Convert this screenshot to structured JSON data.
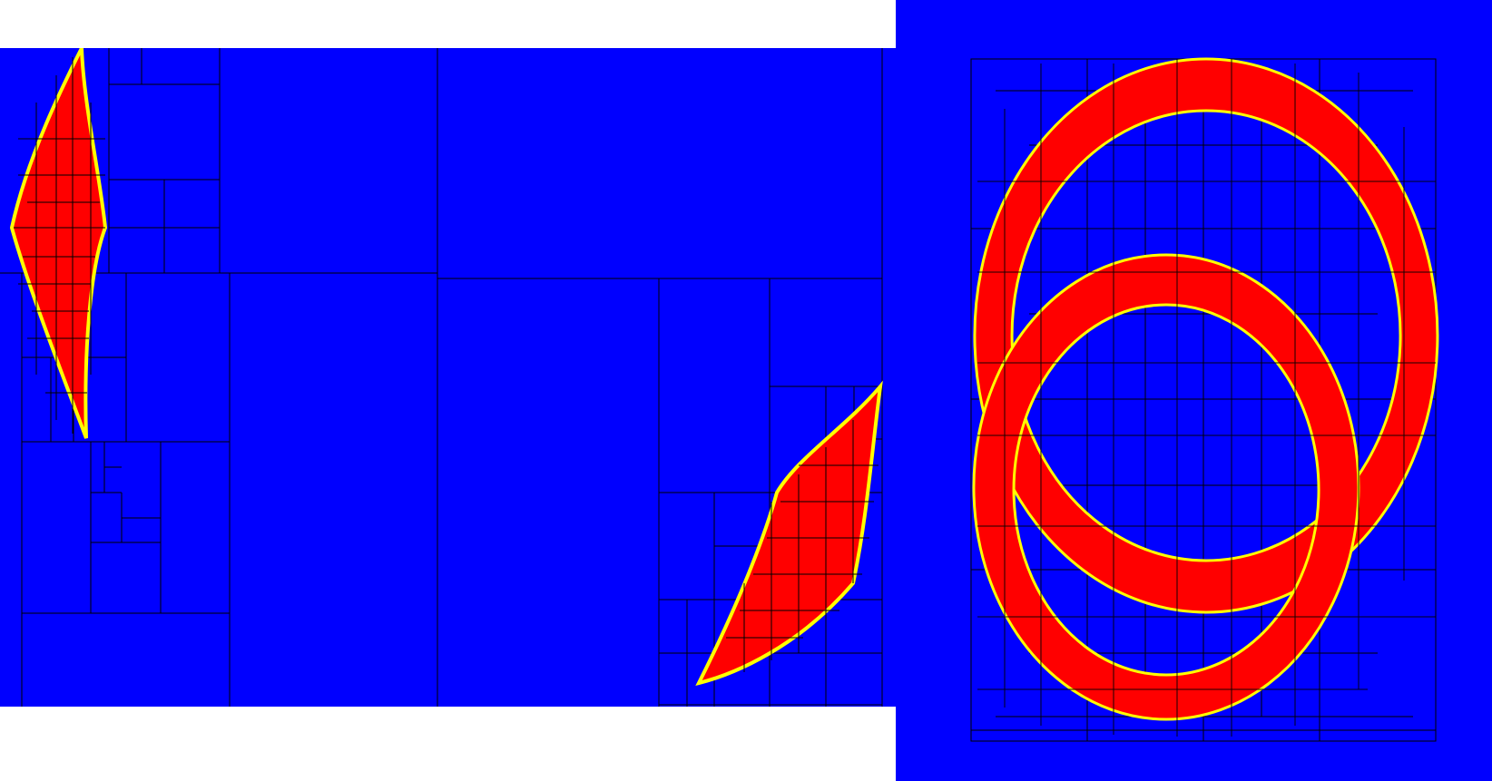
{
  "figure": {
    "panels": [
      {
        "id": "left",
        "description_colors": true
      },
      {
        "id": "right",
        "description_colors": true
      }
    ]
  },
  "colors": {
    "background": "#0000ff",
    "region": "#ff0000",
    "boundary": "#ffff00",
    "grid": "#000000",
    "page": "#ffffff"
  }
}
